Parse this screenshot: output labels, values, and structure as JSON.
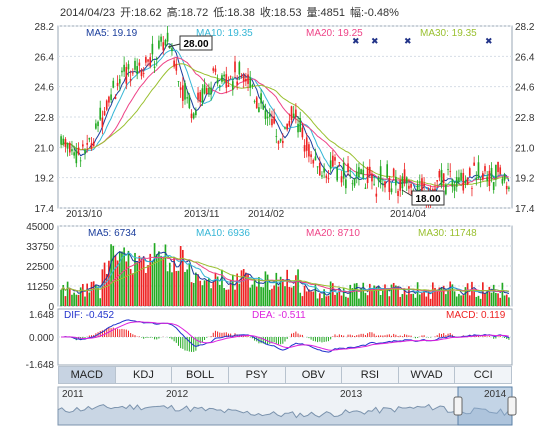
{
  "header": {
    "date": "2014/04/23",
    "open_label": "开:",
    "open": "18.62",
    "high_label": "高:",
    "high": "18.72",
    "low_label": "低:",
    "low": "18.38",
    "close_label": "收:",
    "close": "18.53",
    "volume_label": "量:",
    "volume": "4851",
    "change_label": "幅:",
    "change": "-0.48%"
  },
  "price_panel": {
    "legend": {
      "ma5": "MA5: 19.19",
      "ma10": "MA10: 19.35",
      "ma20": "MA20: 19.25",
      "ma30": "MA30: 19.35"
    },
    "y_ticks_left": [
      "28.2",
      "26.4",
      "24.6",
      "22.8",
      "21.0",
      "19.2",
      "17.4"
    ],
    "y_ticks_right": [
      "28.2",
      "26.4",
      "24.6",
      "22.8",
      "21.0",
      "19.2",
      "17.4"
    ],
    "x_ticks": [
      "2013/10",
      "2013/11",
      "2014/02",
      "2014/04"
    ],
    "max_label": "28.00",
    "min_label": "18.00",
    "y_range": [
      17.4,
      28.2
    ]
  },
  "volume_panel": {
    "legend": {
      "ma5": "MA5: 6734",
      "ma10": "MA10: 6936",
      "ma20": "MA20: 8710",
      "ma30": "MA30: 11748"
    },
    "y_ticks": [
      "45000",
      "33750",
      "22500",
      "11250",
      "0"
    ],
    "y_range": [
      0,
      45000
    ]
  },
  "macd_panel": {
    "dif": "DIF: -0.452",
    "dea": "DEA: -0.511",
    "macd": "MACD: 0.119",
    "y_ticks": [
      "1.648",
      "0.000",
      "-1.648"
    ]
  },
  "tabs": [
    "MACD",
    "KDJ",
    "BOLL",
    "PSY",
    "OBV",
    "RSI",
    "WVAD",
    "CCI"
  ],
  "active_tab": "MACD",
  "navigator": {
    "years": [
      "2011",
      "2012",
      "2013",
      "2014"
    ]
  },
  "colors": {
    "up": "#ee2222",
    "down": "#22aa22",
    "ma5": "#1a3d9c",
    "ma10": "#36b6d6",
    "ma20": "#ee4488",
    "ma30": "#9ac030",
    "dif": "#2233cc",
    "dea": "#dd22dd",
    "grid": "#d6dde6",
    "axis": "#8a98a8"
  },
  "chart_data": {
    "type": "candlestick",
    "ohlc_ranges": {
      "price_min": 17.4,
      "price_max": 28.2,
      "volume_max": 45000
    },
    "marked_high": 28.0,
    "marked_low": 18.0,
    "last_bar": {
      "open": 18.62,
      "high": 18.72,
      "low": 18.38,
      "close": 18.53,
      "volume": 4851
    }
  }
}
